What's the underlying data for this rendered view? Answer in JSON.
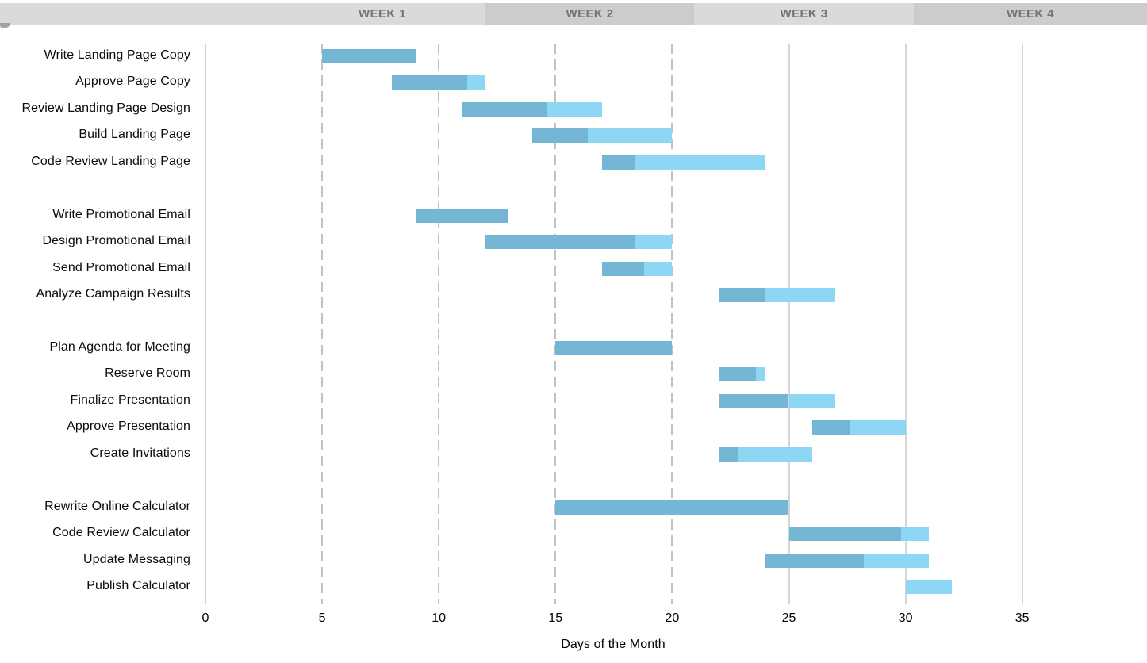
{
  "header": {
    "band_light_color": "#dadada",
    "band_dark_color": "#cccccc",
    "text_color": "#747474"
  },
  "chart_data": {
    "type": "bar",
    "subtype": "gantt",
    "title": "",
    "xlabel": "Days of the Month",
    "ylabel": "",
    "x_ticks": [
      0,
      5,
      10,
      15,
      20,
      25,
      30,
      35
    ],
    "xlim": [
      0,
      40.3
    ],
    "grid": {
      "dashed_gridline_ticks": [
        5,
        10,
        15,
        20
      ],
      "solid_gridline_ticks": [
        25,
        30,
        35
      ],
      "axis_line_tick": 0
    },
    "legend": "none",
    "weeks": [
      {
        "label": "WEEK 1"
      },
      {
        "label": "WEEK 2"
      },
      {
        "label": "WEEK 3"
      },
      {
        "label": "WEEK 4"
      }
    ],
    "colors": {
      "complete_fill": "#74b6d4",
      "remaining_fill": "#8dd7f5"
    },
    "tasks": [
      {
        "name": "Write Landing Page Copy",
        "group": 1,
        "start_day": 5,
        "duration_days": 4,
        "percent_complete": 100
      },
      {
        "name": "Approve Page Copy",
        "group": 1,
        "start_day": 8,
        "duration_days": 4,
        "percent_complete": 80
      },
      {
        "name": "Review Landing Page Design",
        "group": 1,
        "start_day": 11,
        "duration_days": 6,
        "percent_complete": 60
      },
      {
        "name": "Build Landing Page",
        "group": 1,
        "start_day": 14,
        "duration_days": 6,
        "percent_complete": 40
      },
      {
        "name": "Code Review Landing Page",
        "group": 1,
        "start_day": 17,
        "duration_days": 7,
        "percent_complete": 20
      },
      {
        "name": "Write Promotional Email",
        "group": 2,
        "start_day": 9,
        "duration_days": 4,
        "percent_complete": 100
      },
      {
        "name": "Design Promotional Email",
        "group": 2,
        "start_day": 12,
        "duration_days": 8,
        "percent_complete": 80
      },
      {
        "name": "Send Promotional Email",
        "group": 2,
        "start_day": 17,
        "duration_days": 3,
        "percent_complete": 60
      },
      {
        "name": "Analyze Campaign Results",
        "group": 2,
        "start_day": 22,
        "duration_days": 5,
        "percent_complete": 40
      },
      {
        "name": "Plan Agenda for Meeting",
        "group": 3,
        "start_day": 15,
        "duration_days": 5,
        "percent_complete": 100
      },
      {
        "name": "Reserve Room",
        "group": 3,
        "start_day": 22,
        "duration_days": 2,
        "percent_complete": 80
      },
      {
        "name": "Finalize Presentation",
        "group": 3,
        "start_day": 22,
        "duration_days": 5,
        "percent_complete": 60
      },
      {
        "name": "Approve Presentation",
        "group": 3,
        "start_day": 26,
        "duration_days": 4,
        "percent_complete": 40
      },
      {
        "name": "Create Invitations",
        "group": 3,
        "start_day": 22,
        "duration_days": 4,
        "percent_complete": 20
      },
      {
        "name": "Rewrite Online Calculator",
        "group": 4,
        "start_day": 15,
        "duration_days": 10,
        "percent_complete": 100
      },
      {
        "name": "Code Review Calculator",
        "group": 4,
        "start_day": 25,
        "duration_days": 6,
        "percent_complete": 80
      },
      {
        "name": "Update Messaging",
        "group": 4,
        "start_day": 24,
        "duration_days": 7,
        "percent_complete": 60
      },
      {
        "name": "Publish Calculator",
        "group": 4,
        "start_day": 30,
        "duration_days": 2,
        "percent_complete": 0
      }
    ]
  }
}
